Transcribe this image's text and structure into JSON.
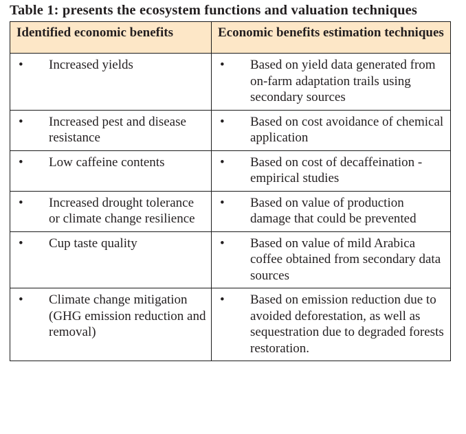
{
  "caption": "Table 1: presents the ecosystem functions and valuation techniques",
  "table": {
    "headers": [
      "Identified economic benefits",
      "Economic benefits estimation techniques"
    ],
    "bullet": "•",
    "rows": [
      {
        "benefit": "Increased yields",
        "technique": "Based on yield data generated from on-farm adaptation trails using secondary sources"
      },
      {
        "benefit": "Increased pest and disease resistance",
        "technique": "Based on cost avoidance of chemical application"
      },
      {
        "benefit": "Low caffeine contents",
        "technique": "Based on cost of decaffeination -empirical studies"
      },
      {
        "benefit": "Increased drought tolerance or climate change resilience",
        "technique": "Based on value of production damage that could be prevented"
      },
      {
        "benefit": "Cup taste quality",
        "technique": "Based on value of mild Arabica coffee obtained from secondary data sources"
      },
      {
        "benefit": "Climate change mitigation (GHG emission reduction and removal)",
        "technique": "Based on emission reduction due to avoided deforestation, as well as sequestration due to degraded forests restoration."
      }
    ]
  }
}
